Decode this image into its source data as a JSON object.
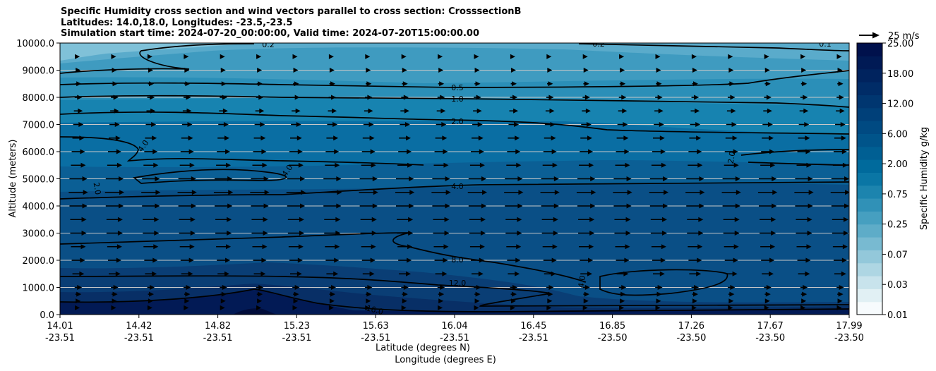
{
  "title": {
    "line1": "Specific Humidity cross section and wind vectors parallel to cross section: CrosssectionB",
    "line2": "Latitudes: 14.0,18.0, Longitudes: -23.5,-23.5",
    "line3": "Simulation start time: 2024-07-20_00:00:00, Valid time: 2024-07-20T15:00:00.00"
  },
  "chart_data": {
    "type": "heatmap",
    "subtype": "filled contour with wind vectors (quiver) and contour lines",
    "ylabel": "Altitude (meters)",
    "xlabel_lat": "Latitude (degrees N)",
    "xlabel_lon": "Longitude (degrees E)",
    "ylim": [
      0,
      10000
    ],
    "y_ticks": [
      "0.0",
      "1000.0",
      "2000.0",
      "3000.0",
      "4000.0",
      "5000.0",
      "6000.0",
      "7000.0",
      "8000.0",
      "9000.0",
      "10000.0"
    ],
    "x_ticks_lat": [
      "14.01",
      "14.42",
      "14.82",
      "15.23",
      "15.63",
      "16.04",
      "16.45",
      "16.85",
      "17.26",
      "17.67",
      "17.99"
    ],
    "x_ticks_lon": [
      "-23.51",
      "-23.51",
      "-23.51",
      "-23.51",
      "-23.51",
      "-23.51",
      "-23.51",
      "-23.50",
      "-23.50",
      "-23.50",
      "-23.50"
    ],
    "grid": "horizontal lines at y ticks",
    "colorbar": {
      "label": "Specific Humidity g/kg",
      "tick_labels": [
        "0.01",
        "0.03",
        "0.07",
        "0.25",
        "0.75",
        "2.00",
        "6.00",
        "12.00",
        "18.00",
        "25.00"
      ],
      "colormap": [
        "#f7fbfd",
        "#e1f0f4",
        "#c8e3ec",
        "#aed6e3",
        "#93c8da",
        "#78bad1",
        "#5eacc8",
        "#469fc0",
        "#3091b7",
        "#1c84ae",
        "#0a76a5",
        "#006a9c",
        "#005f93",
        "#00548a",
        "#004a82",
        "#004079",
        "#003670",
        "#002c67",
        "#00235e",
        "#001a55",
        "#00114c"
      ]
    },
    "contour_labels": [
      "0.2",
      "0.2",
      "0.1",
      "0.5",
      "1.0",
      "2.0",
      "4.0",
      "4.0",
      "4.0",
      "2.0",
      "2.0",
      "4.0",
      "8.0",
      "12.0",
      "16.0",
      "4.0"
    ],
    "quiver_key": "25 m/s",
    "wind_vectors": {
      "direction": "parallel to cross section, toward increasing latitude",
      "rows_altitude_m": [
        250,
        500,
        750,
        1000,
        1500,
        2000,
        2500,
        3000,
        3500,
        4000,
        4500,
        5000,
        5500,
        6000,
        6500,
        7000,
        7500,
        8000,
        8500,
        9000,
        9500
      ],
      "speed_m_s": [
        2,
        3,
        4,
        5,
        8,
        9,
        10,
        11,
        11,
        12,
        13,
        12,
        10,
        9,
        8,
        7,
        6,
        5,
        4,
        3,
        2
      ]
    }
  }
}
